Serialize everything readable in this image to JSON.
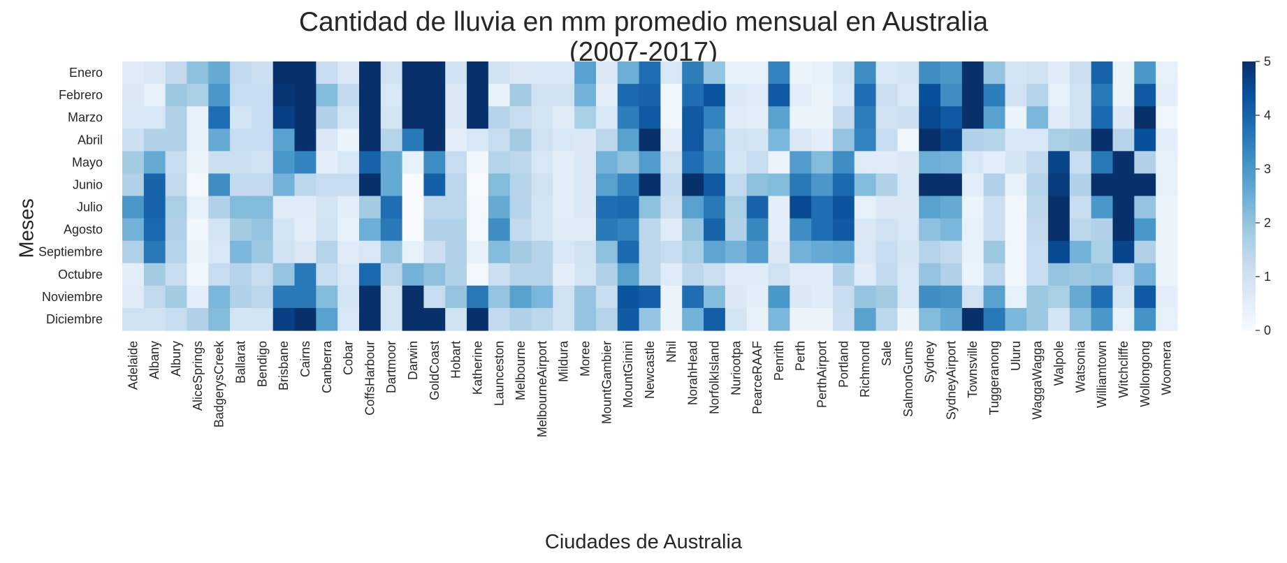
{
  "chart_data": {
    "type": "heatmap",
    "title_lines": [
      "Cantidad de lluvia en mm promedio mensual en Australia",
      "(2007-2017)"
    ],
    "xlabel": "Ciudades de Australia",
    "ylabel": "Meses",
    "colormap": "Blues",
    "color_min": "#f7fbff",
    "color_max": "#08306b",
    "vmin": 0,
    "vmax": 5,
    "colorbar_ticks": [
      0,
      1,
      2,
      3,
      4,
      5
    ],
    "x": [
      "Adelaide",
      "Albany",
      "Albury",
      "AliceSprings",
      "BadgerysCreek",
      "Ballarat",
      "Bendigo",
      "Brisbane",
      "Cairns",
      "Canberra",
      "Cobar",
      "CoffsHarbour",
      "Dartmoor",
      "Darwin",
      "GoldCoast",
      "Hobart",
      "Katherine",
      "Launceston",
      "Melbourne",
      "MelbourneAirport",
      "Mildura",
      "Moree",
      "MountGambier",
      "MountGinini",
      "Newcastle",
      "Nhil",
      "NorahHead",
      "NorfolkIsland",
      "Nuriootpa",
      "PearceRAAF",
      "Penrith",
      "Perth",
      "PerthAirport",
      "Portland",
      "Richmond",
      "Sale",
      "SalmonGums",
      "Sydney",
      "SydneyAirport",
      "Townsville",
      "Tuggeranong",
      "Uluru",
      "WaggaWagga",
      "Walpole",
      "Watsonia",
      "Williamtown",
      "Witchcliffe",
      "Wollongong",
      "Woomera"
    ],
    "y": [
      "Enero",
      "Febrero",
      "Marzo",
      "Abril",
      "Mayo",
      "Junio",
      "Julio",
      "Agosto",
      "Septiembre",
      "Octubre",
      "Noviembre",
      "Diciembre"
    ],
    "values": [
      [
        0.6,
        0.7,
        1.3,
        2.1,
        2.6,
        1.3,
        1.1,
        5.0,
        5.0,
        1.2,
        0.7,
        5.0,
        1.0,
        5.0,
        5.0,
        1.0,
        5.0,
        1.0,
        0.7,
        0.8,
        0.8,
        2.8,
        0.7,
        2.5,
        3.8,
        0.8,
        3.5,
        2.0,
        0.4,
        0.4,
        3.4,
        0.3,
        0.4,
        0.9,
        3.2,
        0.8,
        0.9,
        3.2,
        3.0,
        5.0,
        2.0,
        0.9,
        1.0,
        0.6,
        1.1,
        4.0,
        0.3,
        3.0,
        0.4
      ],
      [
        0.7,
        0.4,
        1.9,
        1.7,
        3.0,
        1.2,
        1.2,
        4.9,
        5.0,
        2.2,
        1.3,
        5.0,
        0.8,
        5.0,
        5.0,
        0.7,
        5.0,
        0.4,
        1.8,
        1.0,
        1.0,
        2.4,
        0.5,
        3.9,
        4.0,
        0.2,
        3.8,
        4.3,
        0.7,
        0.6,
        4.2,
        0.5,
        0.3,
        0.8,
        3.8,
        1.1,
        0.8,
        4.4,
        3.2,
        5.0,
        3.5,
        1.0,
        1.5,
        0.4,
        1.0,
        3.6,
        0.3,
        4.2,
        0.5
      ],
      [
        0.8,
        0.8,
        1.6,
        0.4,
        3.8,
        0.9,
        1.2,
        4.7,
        5.0,
        1.6,
        0.9,
        5.0,
        0.9,
        5.0,
        5.0,
        0.7,
        5.0,
        1.5,
        1.2,
        0.9,
        0.6,
        1.7,
        0.8,
        3.5,
        4.2,
        0.2,
        4.2,
        3.4,
        0.6,
        0.5,
        2.8,
        0.3,
        0.3,
        1.3,
        3.5,
        1.0,
        1.1,
        4.5,
        4.2,
        5.0,
        2.8,
        0.3,
        2.3,
        0.6,
        1.0,
        3.9,
        0.7,
        5.0,
        0.2
      ],
      [
        1.1,
        1.6,
        1.6,
        0.4,
        2.6,
        1.2,
        1.2,
        2.8,
        5.0,
        0.7,
        0.3,
        5.0,
        1.5,
        3.6,
        5.0,
        0.5,
        0.8,
        1.2,
        1.8,
        1.0,
        0.8,
        0.7,
        1.4,
        2.8,
        5.0,
        0.5,
        4.2,
        2.9,
        1.0,
        0.9,
        2.3,
        0.7,
        0.5,
        2.0,
        3.4,
        1.2,
        0.2,
        5.0,
        4.6,
        1.6,
        1.5,
        0.8,
        0.8,
        1.7,
        1.8,
        5.0,
        1.5,
        4.4,
        0.5
      ],
      [
        1.8,
        2.6,
        1.2,
        0.3,
        1.1,
        1.1,
        1.0,
        3.0,
        3.4,
        0.5,
        0.8,
        4.0,
        2.6,
        0.4,
        3.2,
        1.2,
        0.2,
        1.5,
        1.4,
        0.8,
        0.5,
        0.7,
        2.4,
        2.1,
        2.9,
        1.0,
        3.8,
        3.1,
        0.9,
        1.2,
        0.3,
        2.9,
        2.2,
        3.2,
        0.6,
        0.6,
        0.7,
        2.5,
        2.4,
        0.8,
        0.5,
        0.9,
        1.3,
        4.6,
        1.2,
        3.6,
        5.0,
        1.6,
        0.4
      ],
      [
        1.6,
        4.0,
        1.3,
        0.1,
        3.2,
        1.3,
        1.3,
        2.4,
        1.4,
        1.2,
        1.2,
        5.0,
        2.6,
        0.0,
        4.1,
        1.4,
        0.0,
        2.2,
        1.5,
        1.0,
        0.5,
        0.7,
        2.8,
        3.4,
        5.0,
        1.3,
        5.0,
        4.2,
        1.3,
        2.1,
        2.2,
        3.6,
        3.0,
        3.9,
        2.2,
        1.6,
        0.8,
        5.0,
        5.0,
        0.5,
        1.6,
        0.4,
        1.5,
        4.8,
        1.6,
        5.0,
        5.0,
        5.0,
        0.4
      ],
      [
        3.0,
        4.0,
        1.7,
        0.4,
        1.6,
        2.2,
        2.2,
        0.6,
        0.6,
        0.9,
        0.5,
        1.8,
        3.8,
        0.0,
        1.4,
        1.4,
        0.1,
        2.6,
        1.5,
        0.9,
        0.5,
        0.7,
        3.8,
        3.9,
        2.1,
        1.1,
        2.8,
        3.6,
        1.7,
        4.0,
        0.5,
        4.5,
        3.8,
        4.3,
        0.4,
        0.7,
        0.7,
        2.8,
        2.6,
        0.3,
        1.1,
        0.2,
        1.4,
        5.0,
        1.2,
        3.0,
        5.0,
        2.0,
        0.3
      ],
      [
        2.4,
        3.9,
        1.6,
        0.2,
        0.9,
        1.8,
        2.0,
        0.9,
        0.5,
        1.0,
        0.4,
        2.5,
        3.6,
        0.0,
        1.6,
        1.6,
        0.1,
        3.2,
        1.3,
        0.9,
        0.6,
        0.6,
        3.6,
        3.4,
        1.4,
        0.6,
        2.0,
        4.0,
        1.6,
        3.3,
        0.5,
        3.2,
        3.8,
        4.2,
        0.7,
        1.0,
        0.8,
        2.1,
        2.3,
        0.4,
        1.1,
        0.2,
        1.3,
        5.0,
        1.4,
        1.6,
        5.0,
        3.0,
        0.3
      ],
      [
        1.6,
        3.6,
        1.5,
        0.3,
        0.8,
        2.3,
        1.9,
        1.0,
        0.7,
        1.5,
        0.6,
        0.8,
        2.0,
        0.4,
        1.1,
        1.6,
        0.4,
        2.2,
        1.8,
        1.5,
        0.8,
        1.0,
        2.1,
        3.9,
        1.4,
        1.2,
        1.7,
        2.7,
        2.4,
        2.9,
        0.7,
        2.4,
        2.6,
        2.7,
        0.8,
        1.2,
        0.9,
        1.5,
        1.3,
        0.4,
        1.9,
        0.2,
        1.2,
        4.5,
        2.4,
        1.7,
        4.6,
        1.6,
        0.3
      ],
      [
        0.5,
        1.8,
        1.2,
        0.2,
        1.2,
        1.5,
        1.2,
        2.0,
        3.6,
        1.2,
        0.8,
        3.9,
        1.4,
        2.4,
        2.1,
        1.6,
        0.1,
        1.1,
        1.5,
        1.5,
        0.5,
        0.9,
        1.6,
        2.8,
        1.4,
        0.6,
        1.4,
        1.1,
        0.6,
        0.6,
        1.0,
        0.6,
        0.6,
        1.6,
        0.6,
        1.3,
        0.8,
        2.0,
        1.6,
        0.3,
        1.4,
        0.2,
        1.2,
        2.0,
        1.9,
        2.0,
        1.2,
        2.4,
        0.3
      ],
      [
        0.6,
        1.3,
        1.8,
        0.5,
        2.3,
        1.6,
        1.4,
        3.6,
        3.6,
        2.2,
        0.9,
        5.0,
        0.9,
        5.0,
        1.2,
        2.0,
        3.6,
        2.0,
        2.8,
        2.3,
        1.0,
        2.0,
        1.2,
        4.3,
        4.1,
        0.3,
        3.8,
        2.2,
        0.7,
        0.5,
        3.0,
        0.7,
        0.6,
        1.2,
        2.0,
        1.8,
        0.8,
        3.2,
        3.1,
        1.0,
        2.8,
        0.4,
        1.9,
        1.7,
        2.6,
        3.8,
        0.9,
        4.2,
        0.5
      ],
      [
        1.0,
        1.0,
        1.2,
        1.6,
        2.2,
        0.9,
        0.9,
        4.7,
        5.0,
        2.8,
        0.8,
        5.0,
        0.9,
        5.0,
        5.0,
        1.0,
        5.0,
        1.3,
        1.6,
        1.4,
        1.0,
        2.0,
        1.5,
        4.2,
        2.0,
        0.3,
        2.4,
        4.1,
        0.9,
        0.4,
        2.3,
        0.3,
        0.3,
        1.1,
        2.8,
        1.4,
        0.3,
        2.2,
        2.6,
        5.0,
        3.6,
        2.3,
        1.9,
        0.9,
        2.1,
        3.0,
        0.4,
        3.1,
        0.4
      ]
    ]
  }
}
